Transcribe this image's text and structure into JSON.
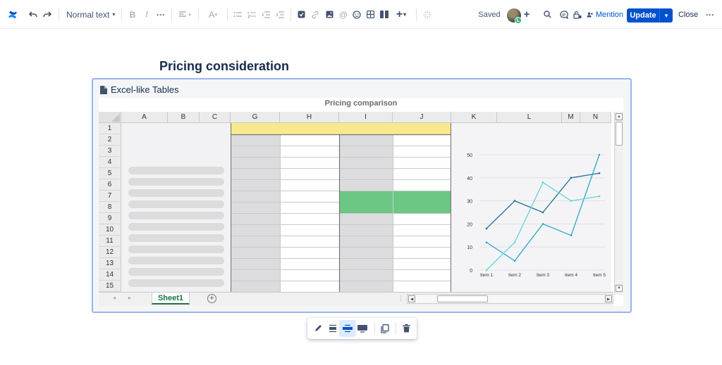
{
  "toolbar": {
    "text_style": "Normal text",
    "status": "Saved",
    "avatar_badge": "L",
    "mention": "Mention",
    "update": "Update",
    "close": "Close",
    "add_collaborator": "+"
  },
  "page": {
    "title": "Pricing consideration"
  },
  "macro": {
    "title": "Excel-like Tables",
    "sheet_tab": "Sheet1",
    "columns": [
      "A",
      "B",
      "C",
      "G",
      "H",
      "I",
      "J",
      "K",
      "L",
      "M",
      "N"
    ],
    "rows": [
      "1",
      "2",
      "3",
      "4",
      "5",
      "6",
      "7",
      "8",
      "9",
      "10",
      "11",
      "12",
      "13",
      "14",
      "15"
    ],
    "chart_caption": "Pricing comparison"
  },
  "chart_data": {
    "type": "line",
    "categories": [
      "Item 1",
      "Item 2",
      "Item 3",
      "Item 4",
      "Item 5"
    ],
    "ylim": [
      0,
      50
    ],
    "yticks": [
      0,
      10,
      20,
      30,
      40,
      50
    ],
    "series": [
      {
        "values": [
          18,
          30,
          25,
          40,
          42
        ],
        "color": "#1f6f9a"
      },
      {
        "values": [
          12,
          4,
          20,
          15,
          50
        ],
        "color": "#2aa7c9"
      },
      {
        "values": [
          0,
          12,
          38,
          30,
          32
        ],
        "color": "#5fd6d6"
      }
    ]
  },
  "colors": {
    "accent": "#0052cc",
    "header_fill": "#f8e98f",
    "highlight_fill": "#6cc784",
    "shaded_col": "#dcdcde"
  }
}
